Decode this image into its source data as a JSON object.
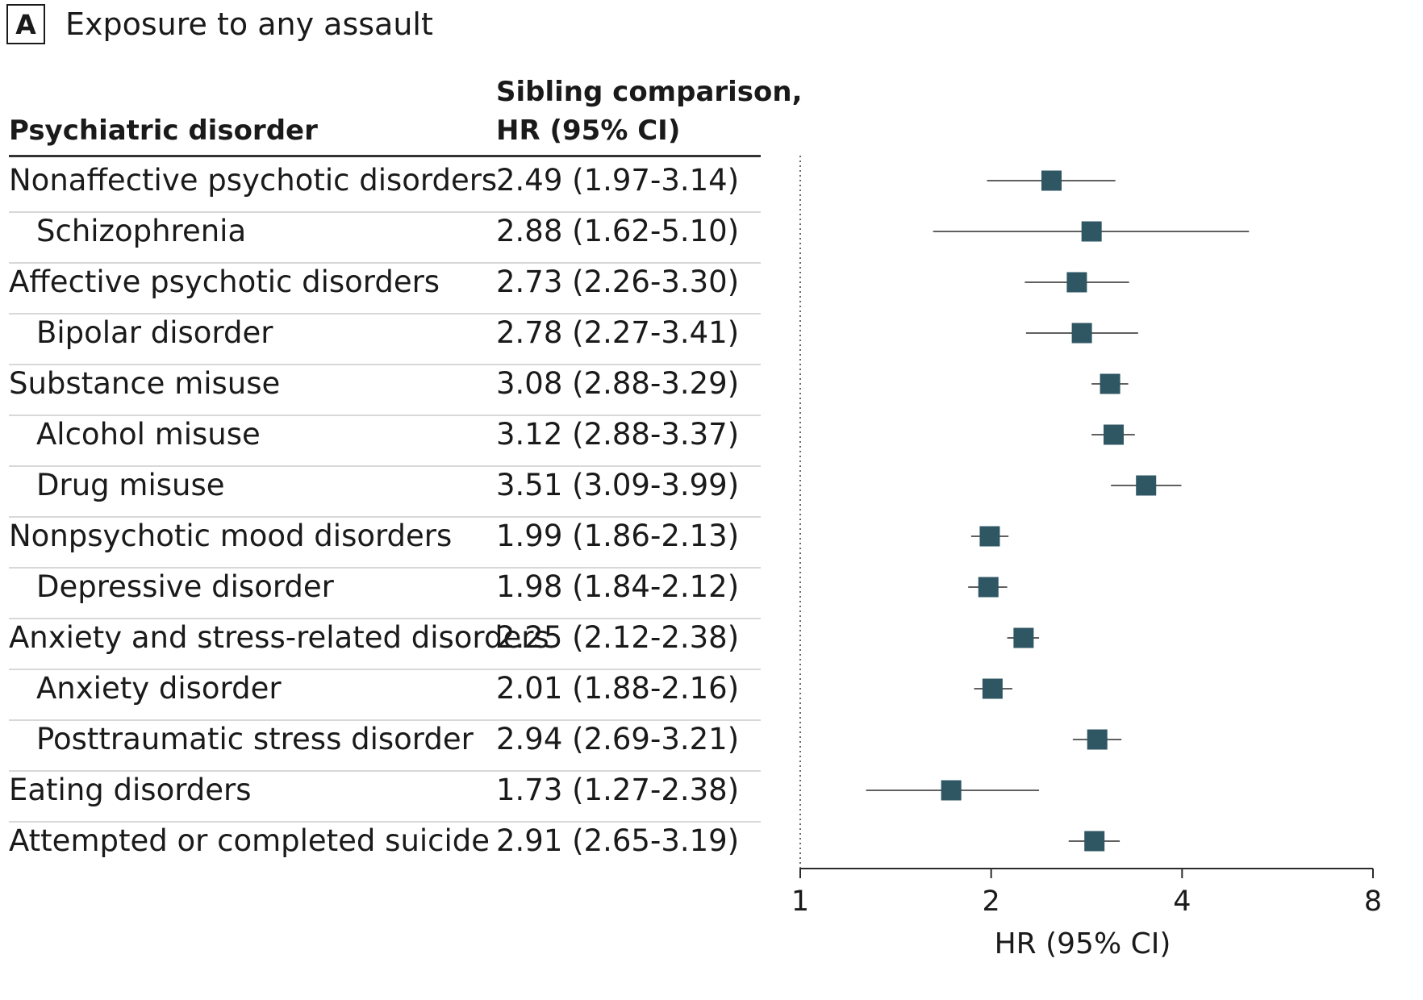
{
  "panel": {
    "letter": "A",
    "title": "Exposure to any assault"
  },
  "columns": {
    "disorder_header": "Psychiatric disorder",
    "hr_header_line1": "Sibling comparison,",
    "hr_header_line2": "HR (95% CI)"
  },
  "chart_data": {
    "type": "forest",
    "xlabel": "HR (95% CI)",
    "xscale": "log2",
    "xlim": [
      1,
      8
    ],
    "xticks": [
      1,
      2,
      4,
      8
    ],
    "xtick_labels": [
      "1",
      "2",
      "4",
      "8"
    ],
    "reference_line": 1,
    "marker_color": "#2e5663",
    "rows": [
      {
        "label": "Nonaffective psychotic disorders",
        "indent": 0,
        "hr": 2.49,
        "lo": 1.97,
        "hi": 3.14,
        "text": "2.49 (1.97-3.14)"
      },
      {
        "label": "Schizophrenia",
        "indent": 1,
        "hr": 2.88,
        "lo": 1.62,
        "hi": 5.1,
        "text": "2.88 (1.62-5.10)"
      },
      {
        "label": "Affective psychotic disorders",
        "indent": 0,
        "hr": 2.73,
        "lo": 2.26,
        "hi": 3.3,
        "text": "2.73 (2.26-3.30)"
      },
      {
        "label": "Bipolar disorder",
        "indent": 1,
        "hr": 2.78,
        "lo": 2.27,
        "hi": 3.41,
        "text": "2.78 (2.27-3.41)"
      },
      {
        "label": "Substance misuse",
        "indent": 0,
        "hr": 3.08,
        "lo": 2.88,
        "hi": 3.29,
        "text": "3.08 (2.88-3.29)"
      },
      {
        "label": "Alcohol misuse",
        "indent": 1,
        "hr": 3.12,
        "lo": 2.88,
        "hi": 3.37,
        "text": "3.12 (2.88-3.37)"
      },
      {
        "label": "Drug misuse",
        "indent": 1,
        "hr": 3.51,
        "lo": 3.09,
        "hi": 3.99,
        "text": "3.51 (3.09-3.99)"
      },
      {
        "label": "Nonpsychotic mood disorders",
        "indent": 0,
        "hr": 1.99,
        "lo": 1.86,
        "hi": 2.13,
        "text": "1.99 (1.86-2.13)"
      },
      {
        "label": "Depressive disorder",
        "indent": 1,
        "hr": 1.98,
        "lo": 1.84,
        "hi": 2.12,
        "text": "1.98 (1.84-2.12)"
      },
      {
        "label": "Anxiety and stress-related disorders",
        "indent": 0,
        "hr": 2.25,
        "lo": 2.12,
        "hi": 2.38,
        "text": "2.25 (2.12-2.38)"
      },
      {
        "label": "Anxiety disorder",
        "indent": 1,
        "hr": 2.01,
        "lo": 1.88,
        "hi": 2.16,
        "text": "2.01 (1.88-2.16)"
      },
      {
        "label": "Posttraumatic stress disorder",
        "indent": 1,
        "hr": 2.94,
        "lo": 2.69,
        "hi": 3.21,
        "text": "2.94 (2.69-3.21)"
      },
      {
        "label": "Eating disorders",
        "indent": 0,
        "hr": 1.73,
        "lo": 1.27,
        "hi": 2.38,
        "text": "1.73 (1.27-2.38)"
      },
      {
        "label": "Attempted or completed suicide",
        "indent": 0,
        "hr": 2.91,
        "lo": 2.65,
        "hi": 3.19,
        "text": "2.91 (2.65-3.19)"
      }
    ]
  }
}
